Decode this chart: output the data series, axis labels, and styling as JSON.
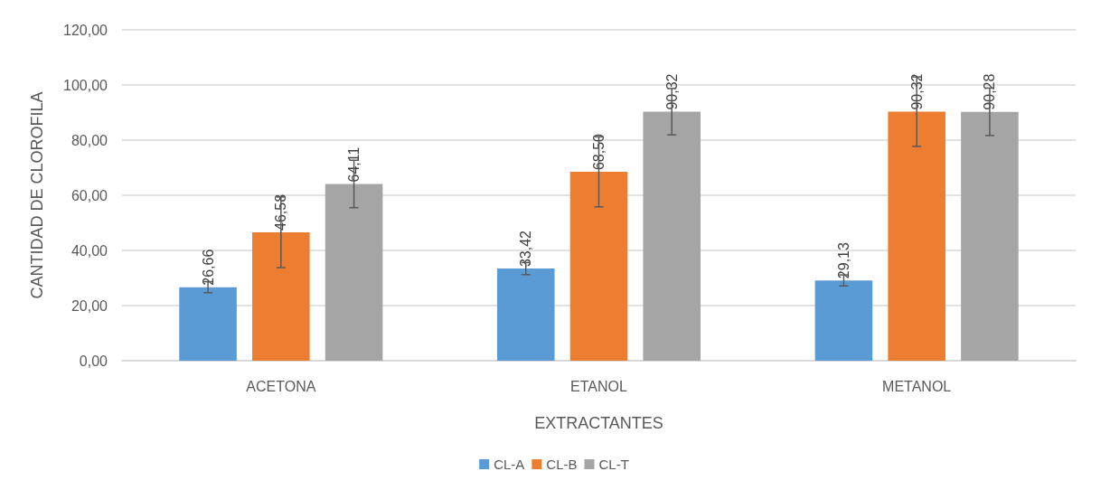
{
  "chart_data": {
    "type": "bar",
    "xlabel": "EXTRACTANTES",
    "ylabel": "CANTIDAD DE CLOROFILA",
    "categories": [
      "ACETONA",
      "ETANOL",
      "METANOL"
    ],
    "series": [
      {
        "name": "CL-A",
        "color": "#5b9bd5",
        "values": [
          26.66,
          33.42,
          29.13
        ],
        "errors": [
          2,
          2.2,
          2
        ],
        "value_labels": [
          "26,66",
          "33,42",
          "29,13"
        ]
      },
      {
        "name": "CL-B",
        "color": "#ed7d31",
        "values": [
          46.58,
          68.5,
          90.32
        ],
        "errors": [
          12.8,
          12.7,
          12.6
        ],
        "value_labels": [
          "46,58",
          "68,50",
          "90,32"
        ]
      },
      {
        "name": "CL-T",
        "color": "#a5a5a5",
        "values": [
          64.11,
          90.32,
          90.28
        ],
        "errors": [
          8.6,
          8.4,
          8.6
        ],
        "value_labels": [
          "64,11",
          "90,32",
          "90,28"
        ]
      }
    ],
    "ylim": [
      0,
      120
    ],
    "yticks": [
      {
        "value": 0,
        "label": "0,00"
      },
      {
        "value": 20,
        "label": "20,00"
      },
      {
        "value": 40,
        "label": "40,00"
      },
      {
        "value": 60,
        "label": "60,00"
      },
      {
        "value": 80,
        "label": "80,00"
      },
      {
        "value": 100,
        "label": "100,00"
      },
      {
        "value": 120,
        "label": "120,00"
      }
    ],
    "grid": "y",
    "legend": "bottom"
  }
}
